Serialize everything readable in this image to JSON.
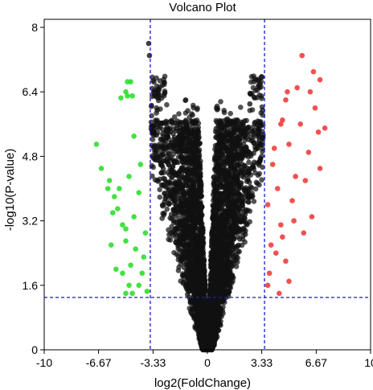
{
  "chart_data": {
    "type": "scatter",
    "title": "Volcano Plot",
    "xlabel": "log2(FoldChange)",
    "ylabel": "-log10(P-value)",
    "xlim": [
      -10,
      10
    ],
    "ylim": [
      0,
      8.2
    ],
    "xticks": [
      -10,
      -6.67,
      -3.33,
      0,
      3.33,
      6.67,
      10
    ],
    "xtick_labels": [
      "-10",
      "-6.67",
      "-3.33",
      "0",
      "3.33",
      "6.67",
      "10"
    ],
    "yticks": [
      0,
      1.6,
      3.2,
      4.8,
      6.4,
      8
    ],
    "ytick_labels": [
      "0",
      "1.6",
      "3.2",
      "4.8",
      "6.4",
      "8"
    ],
    "grid": false,
    "thresholds": {
      "log2fc": [
        -3.5,
        3.5
      ],
      "neg_log10_p": 1.3
    },
    "colors": {
      "down": "#22dd22",
      "up": "#ee3333",
      "ns": "#111111",
      "threshold_line": "#1a1acc"
    },
    "series": [
      {
        "category": "down",
        "points": [
          [
            -6.8,
            5.1
          ],
          [
            -6.5,
            4.5
          ],
          [
            -6.0,
            4.2
          ],
          [
            -5.7,
            3.8
          ],
          [
            -5.2,
            3.1
          ],
          [
            -4.9,
            6.65
          ],
          [
            -4.7,
            6.65
          ],
          [
            -5.0,
            6.4
          ],
          [
            -4.6,
            6.3
          ],
          [
            -5.3,
            6.25
          ],
          [
            -4.9,
            6.3
          ],
          [
            -4.8,
            4.3
          ],
          [
            -5.5,
            3.5
          ],
          [
            -5.0,
            3.0
          ],
          [
            -4.4,
            2.5
          ],
          [
            -5.0,
            2.7
          ],
          [
            -4.7,
            2.1
          ],
          [
            -5.2,
            1.9
          ],
          [
            -4.2,
            1.6
          ],
          [
            -5.0,
            1.4
          ],
          [
            -4.2,
            3.9
          ],
          [
            -4.5,
            3.3
          ],
          [
            -3.8,
            2.9
          ],
          [
            -6.1,
            4.0
          ],
          [
            -5.8,
            3.4
          ],
          [
            -5.9,
            2.6
          ],
          [
            -4.6,
            1.4
          ],
          [
            -4.0,
            1.9
          ],
          [
            -4.8,
            1.6
          ],
          [
            -3.9,
            2.3
          ],
          [
            -5.4,
            4.0
          ],
          [
            -4.1,
            4.6
          ],
          [
            -3.7,
            1.45
          ],
          [
            -5.6,
            2.0
          ],
          [
            -4.5,
            5.3
          ]
        ]
      },
      {
        "category": "up",
        "points": [
          [
            5.8,
            7.3
          ],
          [
            6.5,
            6.9
          ],
          [
            6.9,
            6.7
          ],
          [
            6.3,
            6.4
          ],
          [
            5.5,
            6.5
          ],
          [
            4.8,
            6.2
          ],
          [
            6.6,
            6.0
          ],
          [
            7.2,
            5.5
          ],
          [
            4.6,
            5.7
          ],
          [
            5.0,
            5.1
          ],
          [
            5.4,
            4.3
          ],
          [
            6.0,
            4.2
          ],
          [
            6.9,
            4.5
          ],
          [
            4.3,
            4.0
          ],
          [
            5.2,
            3.7
          ],
          [
            4.5,
            3.1
          ],
          [
            5.9,
            2.9
          ],
          [
            6.4,
            3.3
          ],
          [
            4.2,
            2.4
          ],
          [
            4.8,
            2.2
          ],
          [
            5.0,
            1.7
          ],
          [
            4.4,
            1.4
          ],
          [
            3.8,
            1.9
          ],
          [
            4.1,
            5.0
          ],
          [
            3.7,
            3.6
          ],
          [
            4.9,
            6.4
          ],
          [
            5.7,
            5.6
          ],
          [
            6.2,
            4.9
          ],
          [
            4.6,
            2.8
          ],
          [
            3.9,
            2.6
          ],
          [
            5.3,
            3.2
          ],
          [
            4.0,
            4.6
          ],
          [
            6.8,
            5.4
          ],
          [
            3.7,
            1.6
          ],
          [
            4.5,
            5.6
          ]
        ]
      },
      {
        "category": "ns",
        "generator": "dense V-shaped cloud of not-significant genes, |log2FC| below threshold, max -log10(P) about 7.6 at log2FC about -3.6"
      }
    ]
  }
}
